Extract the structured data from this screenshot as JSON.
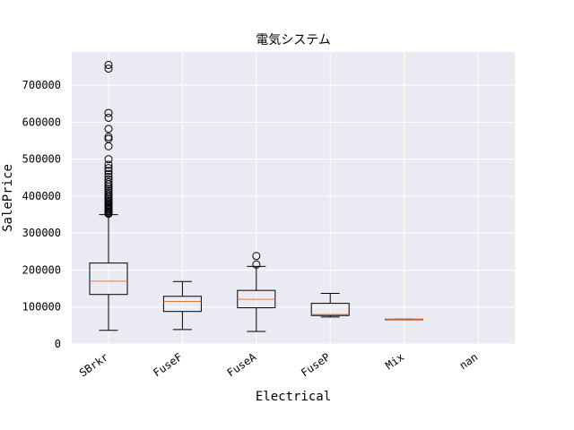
{
  "chart_data": {
    "type": "box",
    "title": "電気システム",
    "xlabel": "Electrical",
    "ylabel": "SalePrice",
    "ylim": [
      0,
      790000
    ],
    "yticks": [
      0,
      100000,
      200000,
      300000,
      400000,
      500000,
      600000,
      700000
    ],
    "ytick_labels": [
      "0",
      "100000",
      "200000",
      "300000",
      "400000",
      "500000",
      "600000",
      "700000"
    ],
    "grid": true,
    "colors": {
      "plot_background": "#eaeaf2",
      "grid": "#ffffff",
      "box_edge": "#000000",
      "median": "#e07b39"
    },
    "categories": [
      "SBrkr",
      "FuseF",
      "FuseA",
      "FuseP",
      "Mix",
      "nan"
    ],
    "boxes": [
      {
        "category": "SBrkr",
        "whisker_low": 37000,
        "q1": 134000,
        "median": 170000,
        "q3": 219000,
        "whisker_high": 350000,
        "outliers": [
          352000,
          355000,
          358000,
          361000,
          364000,
          367000,
          370000,
          373000,
          376000,
          380000,
          384000,
          388000,
          392000,
          396000,
          400000,
          405000,
          410000,
          415000,
          420000,
          426000,
          432000,
          438000,
          445000,
          452000,
          460000,
          468000,
          476000,
          485000,
          500000,
          535000,
          555000,
          560000,
          582000,
          612000,
          625000,
          745000,
          755000
        ]
      },
      {
        "category": "FuseF",
        "whisker_low": 39000,
        "q1": 88000,
        "median": 115000,
        "q3": 129000,
        "whisker_high": 169000,
        "outliers": []
      },
      {
        "category": "FuseA",
        "whisker_low": 34000,
        "q1": 98000,
        "median": 121000,
        "q3": 145000,
        "whisker_high": 210000,
        "outliers": [
          215000,
          238000
        ]
      },
      {
        "category": "FuseP",
        "whisker_low": 73000,
        "q1": 77000,
        "median": 80000,
        "q3": 110000,
        "whisker_high": 137000,
        "outliers": []
      },
      {
        "category": "Mix",
        "whisker_low": 67000,
        "q1": 67000,
        "median": 67000,
        "q3": 67000,
        "whisker_high": 67000,
        "outliers": []
      },
      {
        "category": "nan",
        "whisker_low": null,
        "q1": null,
        "median": null,
        "q3": null,
        "whisker_high": null,
        "outliers": []
      }
    ]
  }
}
